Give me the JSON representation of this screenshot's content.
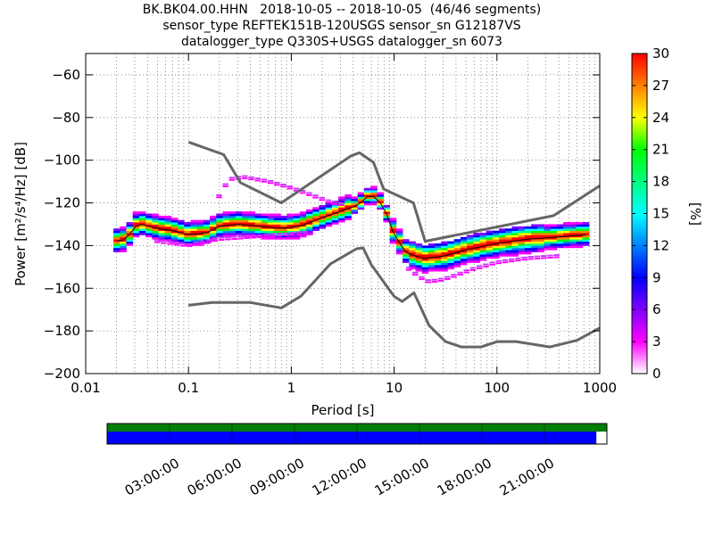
{
  "title_lines": [
    "BK.BK04.00.HHN   2018-10-05 -- 2018-10-05  (46/46 segments)",
    "sensor_type REFTEK151B-120USGS sensor_sn G12187VS",
    "datalogger_type Q330S+USGS datalogger_sn 6073"
  ],
  "chart_data": {
    "type": "heatmap",
    "xlabel": "Period [s]",
    "ylabel": "Power [m²/s⁴/Hz] [dB]",
    "xscale": "log",
    "xlim": [
      0.01,
      1000
    ],
    "ylim": [
      -200,
      -50
    ],
    "x_ticks": [
      0.01,
      0.1,
      1,
      10,
      100,
      1000
    ],
    "x_tick_labels": [
      "0.01",
      "0.1",
      "1",
      "10",
      "100",
      "1000"
    ],
    "y_ticks": [
      -200,
      -180,
      -160,
      -140,
      -120,
      -100,
      -80,
      -60
    ],
    "y_tick_labels": [
      "−200",
      "−180",
      "−160",
      "−140",
      "−120",
      "−100",
      "−80",
      "−60"
    ],
    "colorbar": {
      "label": "[%]",
      "range": [
        0,
        30
      ],
      "ticks": [
        0,
        3,
        6,
        9,
        12,
        15,
        18,
        21,
        24,
        27,
        30
      ],
      "colormap": [
        "#ffffff",
        "#ff00ff",
        "#8000ff",
        "#0000ff",
        "#0080ff",
        "#00ffff",
        "#00ff80",
        "#00ff00",
        "#ffff00",
        "#ff8000",
        "#ff0000"
      ]
    },
    "model_color": "#666666",
    "noise_models": [
      {
        "period": [
          0.1,
          0.17,
          0.4,
          0.8,
          1.24,
          2.4,
          4.3,
          5,
          6,
          10,
          12,
          15.6,
          21.9,
          31.6,
          45,
          70,
          101,
          154,
          328,
          600,
          1000
        ],
        "power": [
          -168.0,
          -166.7,
          -166.7,
          -169.2,
          -163.7,
          -148.6,
          -141.5,
          -141.1,
          -149.0,
          -163.8,
          -166.2,
          -162.1,
          -177.5,
          -185.0,
          -187.5,
          -187.5,
          -185.0,
          -185.0,
          -187.5,
          -184.4,
          -178.6
        ]
      },
      {
        "period": [
          0.1,
          0.22,
          0.32,
          0.8,
          3.8,
          4.6,
          6.3,
          7.9,
          15.4,
          20,
          354.8,
          1000
        ],
        "power": [
          -91.5,
          -97.4,
          -110.5,
          -120.0,
          -98.0,
          -96.5,
          -101.0,
          -113.5,
          -120.0,
          -138.0,
          -126.0,
          -112.0
        ]
      }
    ],
    "mode_curve": {
      "period": [
        0.02,
        0.025,
        0.03,
        0.035,
        0.05,
        0.07,
        0.1,
        0.15,
        0.2,
        0.3,
        0.5,
        0.8,
        1.2,
        2,
        3,
        4.5,
        5.5,
        6.5,
        8,
        10,
        13,
        16,
        20,
        30,
        50,
        100,
        200,
        400,
        700
      ],
      "power": [
        -138,
        -137,
        -131,
        -130,
        -132,
        -133,
        -135,
        -134,
        -131,
        -130,
        -131,
        -132,
        -131,
        -127,
        -124,
        -121,
        -117,
        -117,
        -122,
        -135,
        -143,
        -145,
        -146,
        -145,
        -142,
        -139,
        -137,
        -136,
        -135
      ]
    },
    "spread_curves": [
      {
        "name": "upper-low-freq",
        "period": [
          0.2,
          0.25,
          0.35,
          0.6,
          1,
          1.5,
          2.5,
          3.5
        ],
        "power": [
          -118,
          -110,
          -109,
          -111,
          -114,
          -117,
          -121,
          -122
        ]
      },
      {
        "name": "lower-band",
        "period": [
          0.05,
          0.1,
          0.2,
          0.4,
          0.8,
          1.5
        ],
        "power": [
          -139,
          -141,
          -138,
          -137,
          -136,
          -135
        ]
      },
      {
        "name": "lower-high-freq",
        "period": [
          14,
          18,
          22,
          30,
          40,
          60,
          100,
          200,
          400
        ],
        "power": [
          -152,
          -156,
          -158,
          -157,
          -155,
          -152,
          -149,
          -147,
          -146
        ]
      }
    ]
  },
  "timeline": {
    "tick_labels": [
      "03:00:00",
      "06:00:00",
      "09:00:00",
      "12:00:00",
      "15:00:00",
      "18:00:00",
      "21:00:00"
    ],
    "data_coverage_fraction": 1.0,
    "psd_coverage_fraction": 0.979,
    "data_color": "#007f00",
    "psd_color": "#0000ff"
  }
}
